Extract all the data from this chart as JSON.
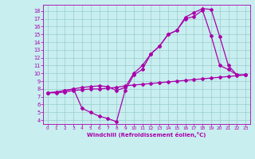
{
  "xlabel": "Windchill (Refroidissement éolien,°C)",
  "bg_color": "#c8eef0",
  "line_color": "#aa00aa",
  "grid_color": "#99cccc",
  "xlim": [
    -0.5,
    23.5
  ],
  "ylim": [
    3.5,
    18.8
  ],
  "xticks": [
    0,
    1,
    2,
    3,
    4,
    5,
    6,
    7,
    8,
    9,
    10,
    11,
    12,
    13,
    14,
    15,
    16,
    17,
    18,
    19,
    20,
    21,
    22,
    23
  ],
  "yticks": [
    4,
    5,
    6,
    7,
    8,
    9,
    10,
    11,
    12,
    13,
    14,
    15,
    16,
    17,
    18
  ],
  "line1_x": [
    0,
    1,
    2,
    3,
    4,
    5,
    6,
    7,
    8,
    9,
    10,
    11,
    12,
    13,
    14,
    15,
    16,
    17,
    18,
    19,
    20,
    21,
    22,
    23
  ],
  "line1_y": [
    7.5,
    7.5,
    7.6,
    7.8,
    7.9,
    8.0,
    8.0,
    8.1,
    8.2,
    8.4,
    8.5,
    8.6,
    8.7,
    8.8,
    8.9,
    9.0,
    9.1,
    9.2,
    9.3,
    9.4,
    9.5,
    9.6,
    9.7,
    9.8
  ],
  "line2_x": [
    0,
    1,
    2,
    3,
    4,
    5,
    6,
    7,
    8,
    9,
    10,
    11,
    12,
    13,
    14,
    15,
    16,
    17,
    18,
    19,
    20,
    21,
    22,
    23
  ],
  "line2_y": [
    7.5,
    7.6,
    7.8,
    8.0,
    8.2,
    8.3,
    8.4,
    8.3,
    7.8,
    8.2,
    10.0,
    11.0,
    12.5,
    13.5,
    15.0,
    15.5,
    17.0,
    17.3,
    18.1,
    14.8,
    11.0,
    10.5,
    9.8,
    9.8
  ],
  "line3_x": [
    0,
    1,
    2,
    3,
    4,
    5,
    6,
    7,
    8,
    9,
    10,
    11,
    12,
    13,
    14,
    15,
    16,
    17,
    18,
    19,
    20,
    21,
    22,
    23
  ],
  "line3_y": [
    7.5,
    7.6,
    7.8,
    8.0,
    5.5,
    5.0,
    4.5,
    4.2,
    3.8,
    7.8,
    9.8,
    10.5,
    12.5,
    13.5,
    15.0,
    15.5,
    17.2,
    17.8,
    18.3,
    18.2,
    14.7,
    11.0,
    9.8,
    9.8
  ],
  "marker": "D",
  "markersize": 2.0,
  "linewidth": 0.9
}
